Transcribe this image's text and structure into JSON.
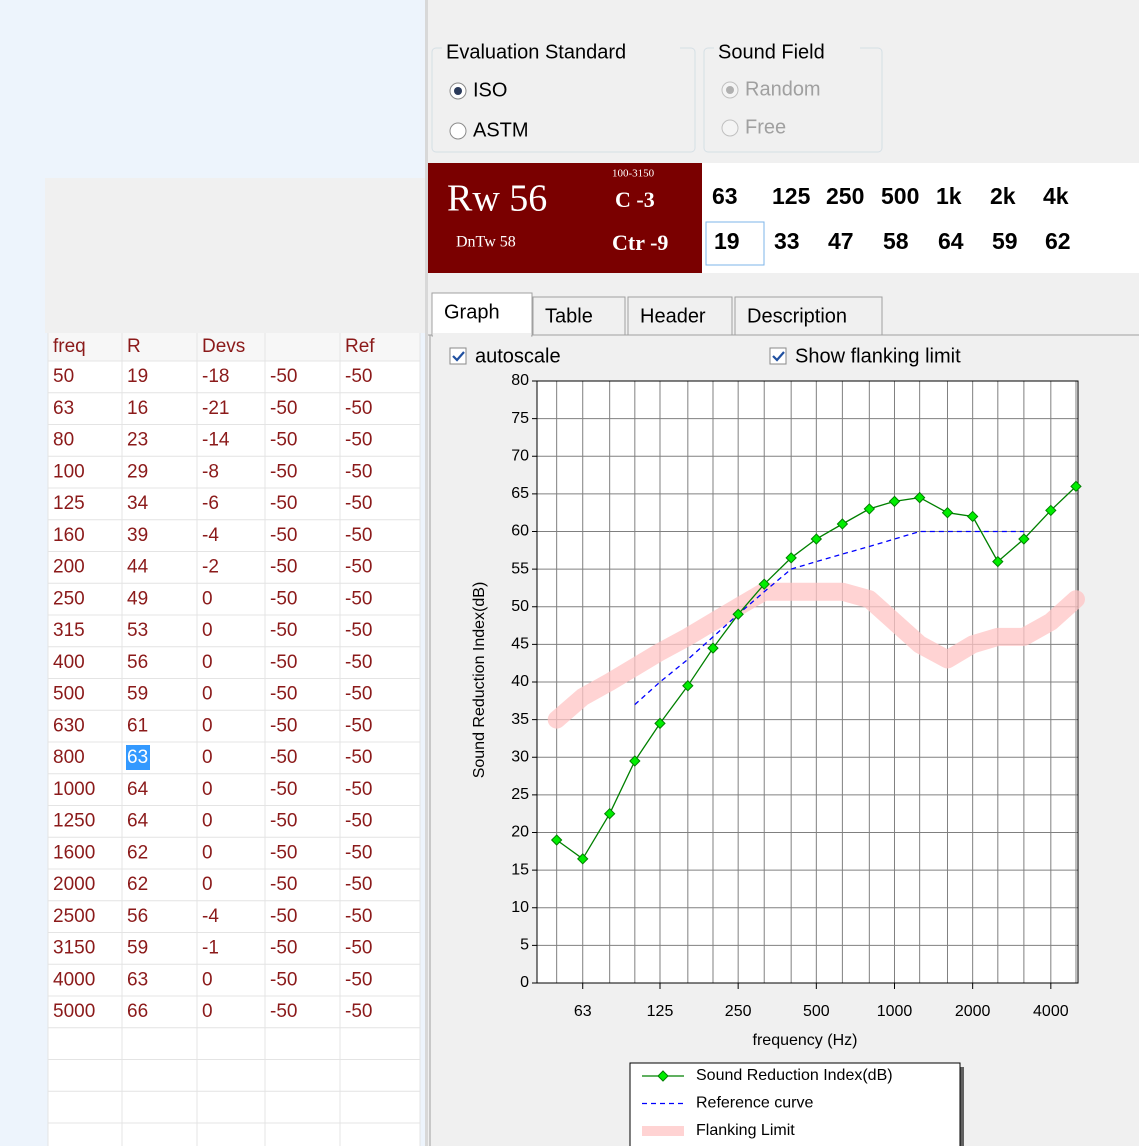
{
  "evaluation_standard": {
    "title": "Evaluation Standard",
    "options": [
      "ISO",
      "ASTM"
    ],
    "selected": "ISO"
  },
  "sound_field": {
    "title": "Sound Field",
    "options": [
      "Random",
      "Free"
    ],
    "selected": "Random",
    "disabled": true
  },
  "rating": {
    "rw": "Rw 56",
    "dntw": "DnTw 58",
    "range": "100-3150",
    "c": "C -3",
    "ctr": "Ctr -9"
  },
  "octave_table": {
    "headers": [
      "63",
      "125",
      "250",
      "500",
      "1k",
      "2k",
      "4k"
    ],
    "values": [
      19,
      33,
      47,
      58,
      64,
      59,
      62
    ]
  },
  "tabs": {
    "items": [
      "Graph",
      "Table",
      "Header",
      "Description"
    ],
    "selected": "Graph"
  },
  "options": {
    "autoscale": {
      "label": "autoscale",
      "checked": true
    },
    "flanking": {
      "label": "Show flanking limit",
      "checked": true
    }
  },
  "left_table": {
    "headers": [
      "freq",
      "R",
      "Devs",
      "Ref"
    ],
    "rows": [
      [
        50,
        19,
        -18,
        -50,
        -50
      ],
      [
        63,
        16,
        -21,
        -50,
        -50
      ],
      [
        80,
        23,
        -14,
        -50,
        -50
      ],
      [
        100,
        29,
        -8,
        -50,
        -50
      ],
      [
        125,
        34,
        -6,
        -50,
        -50
      ],
      [
        160,
        39,
        -4,
        -50,
        -50
      ],
      [
        200,
        44,
        -2,
        -50,
        -50
      ],
      [
        250,
        49,
        0,
        -50,
        -50
      ],
      [
        315,
        53,
        0,
        -50,
        -50
      ],
      [
        400,
        56,
        0,
        -50,
        -50
      ],
      [
        500,
        59,
        0,
        -50,
        -50
      ],
      [
        630,
        61,
        0,
        -50,
        -50
      ],
      [
        800,
        63,
        0,
        -50,
        -50
      ],
      [
        1000,
        64,
        0,
        -50,
        -50
      ],
      [
        1250,
        64,
        0,
        -50,
        -50
      ],
      [
        1600,
        62,
        0,
        -50,
        -50
      ],
      [
        2000,
        62,
        0,
        -50,
        -50
      ],
      [
        2500,
        56,
        -4,
        -50,
        -50
      ],
      [
        3150,
        59,
        -1,
        -50,
        -50
      ],
      [
        4000,
        63,
        0,
        -50,
        -50
      ],
      [
        5000,
        66,
        0,
        -50,
        -50
      ]
    ]
  },
  "chart_data": {
    "type": "line",
    "xlabel": "frequency (Hz)",
    "ylabel": "Sound Reduction Index(dB)",
    "x": [
      50,
      63,
      80,
      100,
      125,
      160,
      200,
      250,
      315,
      400,
      500,
      630,
      800,
      1000,
      1250,
      1600,
      2000,
      2500,
      3150,
      4000,
      5000
    ],
    "series": [
      {
        "name": "Flanking Limit",
        "color": "#ffc4c4",
        "style": "band",
        "values": [
          35,
          38,
          40,
          42,
          44,
          46,
          48,
          50,
          52,
          52,
          52,
          52,
          51,
          48,
          45,
          43,
          45,
          46,
          46,
          48,
          51
        ]
      },
      {
        "name": "Reference curve",
        "color": "#0000ff",
        "style": "dashed",
        "values": [
          null,
          null,
          null,
          37,
          40,
          43,
          46,
          49,
          52,
          55,
          56,
          57,
          58,
          59,
          60,
          60,
          60,
          60,
          60,
          null,
          null
        ]
      },
      {
        "name": "Sound Reduction Index(dB)",
        "color": "#008000",
        "marker_color": "#00ee00",
        "style": "marked",
        "values": [
          19,
          16.5,
          22.5,
          29.5,
          34.5,
          39.5,
          44.5,
          49,
          53,
          56.5,
          59,
          61,
          63,
          64,
          64.5,
          62.5,
          62,
          56,
          59,
          62.8,
          66
        ]
      }
    ],
    "legend_order": [
      2,
      1,
      0
    ],
    "xscale": "log",
    "xlim": [
      42,
      5090
    ],
    "xticks": [
      63,
      125,
      250,
      500,
      1000,
      2000,
      4000
    ],
    "ylim": [
      0,
      80
    ],
    "yticks": [
      0,
      5,
      10,
      15,
      20,
      25,
      30,
      35,
      40,
      45,
      50,
      55,
      60,
      65,
      70,
      75,
      80
    ],
    "grid": true,
    "legend": "bottom"
  }
}
